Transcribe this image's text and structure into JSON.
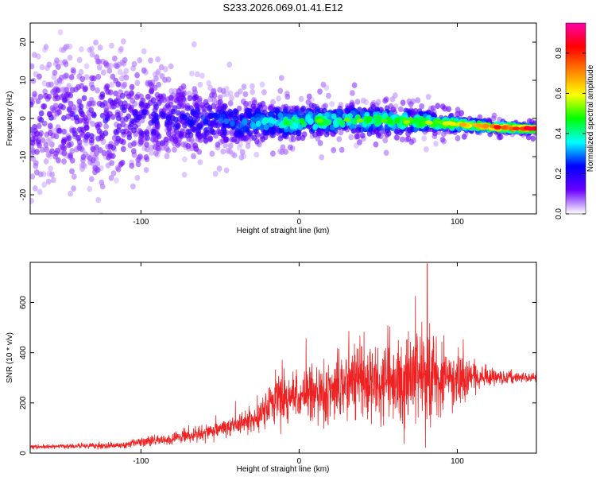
{
  "figure": {
    "title": "S233.2026.069.01.41.E12"
  },
  "chart_data": [
    {
      "type": "heatmap",
      "title": "S233.2026.069.01.41.E12",
      "xlabel": "Height of straight line (km)",
      "ylabel": "Frequency (Hz)",
      "xlim": [
        -170,
        150
      ],
      "ylim": [
        -25,
        25
      ],
      "xticks": [
        -100,
        0,
        100
      ],
      "yticks": [
        -20,
        -10,
        0,
        10,
        20
      ],
      "colorbar": {
        "label": "Normalized spectral amplitude",
        "range": [
          0,
          0.95
        ],
        "ticks": [
          0,
          0.2,
          0.4,
          0.6,
          0.8
        ],
        "tick_labels": [
          "0.0",
          "0.2",
          "0.4",
          "0.6",
          "0.8"
        ],
        "colormap": [
          "#ffffff",
          "#6a00ff",
          "#0000ff",
          "#00ffff",
          "#00ff00",
          "#ffff00",
          "#ff8000",
          "#ff0000",
          "#ff00aa"
        ]
      },
      "ridge": {
        "x": [
          -170,
          -120,
          -80,
          -40,
          -10,
          20,
          50,
          80,
          100,
          120,
          140,
          150
        ],
        "center_hz": [
          0,
          0,
          0,
          -1,
          -1,
          -0.5,
          -0.5,
          -1,
          -1.5,
          -2.2,
          -2.6,
          -2.6
        ],
        "halfwidth_hz": [
          25,
          24,
          14,
          7,
          5,
          4,
          4,
          3,
          2,
          1.5,
          1,
          1
        ],
        "peak_amplitude": [
          0.15,
          0.18,
          0.2,
          0.3,
          0.45,
          0.5,
          0.5,
          0.55,
          0.6,
          0.75,
          0.9,
          0.85
        ]
      },
      "grid": false
    },
    {
      "type": "line",
      "xlabel": "Height of straight line (km)",
      "ylabel": "SNR (10 * v/v)",
      "xlim": [
        -170,
        150
      ],
      "ylim": [
        0,
        760
      ],
      "xticks": [
        -100,
        0,
        100
      ],
      "yticks": [
        0,
        200,
        400,
        600
      ],
      "color": "#ee2222",
      "envelope": {
        "x": [
          -170,
          -110,
          -100,
          -80,
          -60,
          -40,
          -25,
          -20,
          -10,
          0,
          20,
          30,
          40,
          60,
          80,
          90,
          100,
          110,
          120,
          130,
          150
        ],
        "mean": [
          25,
          30,
          45,
          55,
          80,
          110,
          140,
          200,
          215,
          230,
          240,
          265,
          280,
          290,
          300,
          305,
          300,
          300,
          305,
          300,
          300
        ],
        "spread": [
          10,
          15,
          25,
          30,
          40,
          50,
          60,
          90,
          130,
          130,
          150,
          170,
          200,
          220,
          230,
          200,
          150,
          80,
          40,
          30,
          25
        ]
      },
      "peak": {
        "x": 81,
        "y": 755
      },
      "grid": false
    }
  ]
}
